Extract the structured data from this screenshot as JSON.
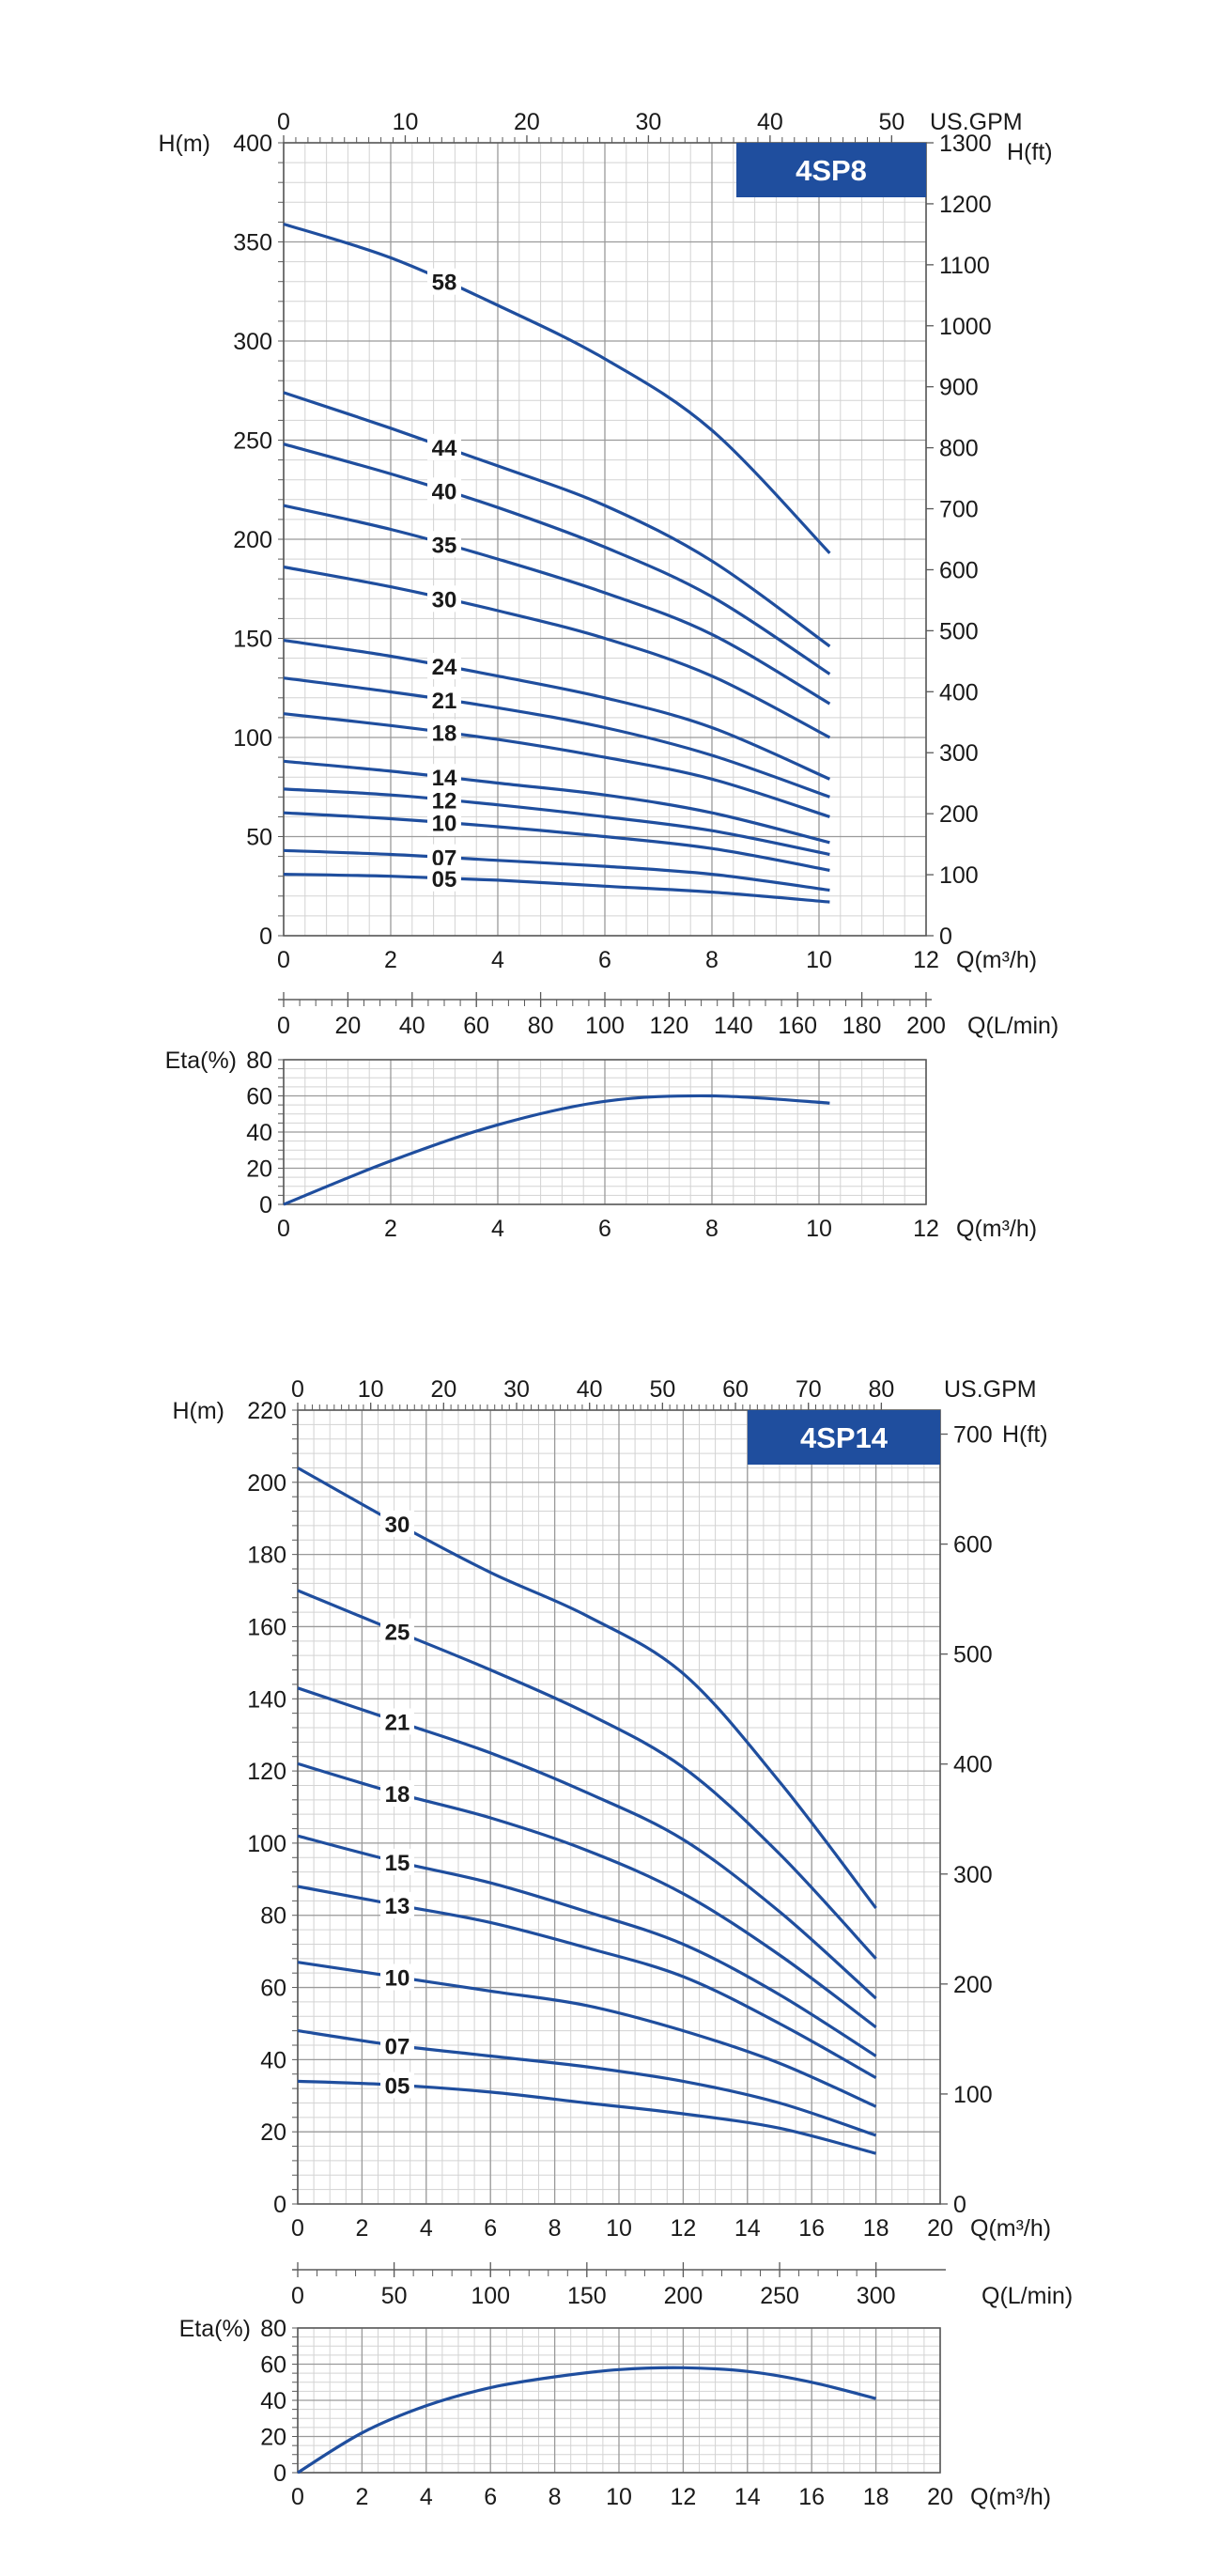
{
  "colors": {
    "curve": "#1f4e9e",
    "badge": "#1f4e9e",
    "grid_major": "#9a9a9a",
    "grid_minor": "#d3d3d3",
    "axis": "#5a5a5a",
    "text": "#1a1a1a"
  },
  "chart_data": [
    {
      "type": "line",
      "model": "4SP8",
      "x_unit": "Q(m³/h)",
      "y_unit": "H(m)",
      "top_unit": "US.GPM",
      "right_unit": "H(ft)",
      "xlim": [
        0,
        12
      ],
      "ylim": [
        0,
        400
      ],
      "x_ticks": [
        "0",
        "2",
        "4",
        "6",
        "8",
        "10",
        "12"
      ],
      "y_ticks": [
        "0",
        "50",
        "100",
        "150",
        "200",
        "250",
        "300",
        "350",
        "400"
      ],
      "top_ticks": [
        "0",
        "10",
        "20",
        "30",
        "40",
        "50"
      ],
      "right_ticks": [
        "0",
        "100",
        "200",
        "300",
        "400",
        "500",
        "600",
        "700",
        "800",
        "900",
        "1000",
        "1100",
        "1200",
        "1300"
      ],
      "grid": true,
      "series": [
        {
          "name": "58",
          "x": [
            0,
            2,
            4,
            6,
            8,
            10.2
          ],
          "y": [
            359,
            342,
            318,
            291,
            255,
            193
          ]
        },
        {
          "name": "44",
          "x": [
            0,
            2,
            4,
            6,
            8,
            10.2
          ],
          "y": [
            274,
            256,
            237,
            217,
            189,
            146
          ]
        },
        {
          "name": "40",
          "x": [
            0,
            2,
            4,
            6,
            8,
            10.2
          ],
          "y": [
            248,
            233,
            216,
            196,
            171,
            132
          ]
        },
        {
          "name": "35",
          "x": [
            0,
            2,
            4,
            6,
            8,
            10.2
          ],
          "y": [
            217,
            205,
            190,
            173,
            152,
            117
          ]
        },
        {
          "name": "30",
          "x": [
            0,
            2,
            4,
            6,
            8,
            10.2
          ],
          "y": [
            186,
            176,
            164,
            150,
            131,
            100
          ]
        },
        {
          "name": "24",
          "x": [
            0,
            2,
            4,
            6,
            8,
            10.2
          ],
          "y": [
            149,
            141,
            131,
            120,
            105,
            79
          ]
        },
        {
          "name": "21",
          "x": [
            0,
            2,
            4,
            6,
            8,
            10.2
          ],
          "y": [
            130,
            123,
            115,
            105,
            91,
            70
          ]
        },
        {
          "name": "18",
          "x": [
            0,
            2,
            4,
            6,
            8,
            10.2
          ],
          "y": [
            112,
            106,
            99,
            90,
            79,
            60
          ]
        },
        {
          "name": "14",
          "x": [
            0,
            2,
            4,
            6,
            8,
            10.2
          ],
          "y": [
            88,
            83,
            77,
            71,
            62,
            47
          ]
        },
        {
          "name": "12",
          "x": [
            0,
            2,
            4,
            6,
            8,
            10.2
          ],
          "y": [
            74,
            71,
            66,
            60,
            53,
            41
          ]
        },
        {
          "name": "10",
          "x": [
            0,
            2,
            4,
            6,
            8,
            10.2
          ],
          "y": [
            62,
            59,
            55,
            50,
            44,
            33
          ]
        },
        {
          "name": "07",
          "x": [
            0,
            2,
            4,
            6,
            8,
            10.2
          ],
          "y": [
            43,
            41,
            38,
            35,
            31,
            23
          ]
        },
        {
          "name": "05",
          "x": [
            0,
            2,
            4,
            6,
            8,
            10.2
          ],
          "y": [
            31,
            30,
            28,
            25,
            22,
            17
          ]
        }
      ],
      "lmin_axis": {
        "unit": "Q(L/min)",
        "ticks": [
          "0",
          "20",
          "40",
          "60",
          "80",
          "100",
          "120",
          "140",
          "160",
          "180",
          "200"
        ]
      },
      "efficiency": {
        "y_unit": "Eta(%)",
        "x_unit": "Q(m³/h)",
        "ylim": [
          0,
          80
        ],
        "y_ticks": [
          "0",
          "20",
          "40",
          "60",
          "80"
        ],
        "x_ticks": [
          "0",
          "2",
          "4",
          "6",
          "8",
          "10",
          "12"
        ],
        "x": [
          0,
          2,
          4,
          6,
          8,
          10.2
        ],
        "y": [
          0,
          24,
          44,
          57,
          60,
          56
        ]
      }
    },
    {
      "type": "line",
      "model": "4SP14",
      "x_unit": "Q(m³/h)",
      "y_unit": "H(m)",
      "top_unit": "US.GPM",
      "right_unit": "H(ft)",
      "xlim": [
        0,
        20
      ],
      "ylim": [
        0,
        220
      ],
      "x_ticks": [
        "0",
        "2",
        "4",
        "6",
        "8",
        "10",
        "12",
        "14",
        "16",
        "18",
        "20"
      ],
      "y_ticks": [
        "0",
        "20",
        "40",
        "60",
        "80",
        "100",
        "120",
        "140",
        "160",
        "180",
        "200",
        "220"
      ],
      "top_ticks": [
        "0",
        "10",
        "20",
        "30",
        "40",
        "50",
        "60",
        "70",
        "80"
      ],
      "right_ticks": [
        "0",
        "100",
        "200",
        "300",
        "400",
        "500",
        "600",
        "700"
      ],
      "grid": true,
      "series": [
        {
          "name": "30",
          "x": [
            0,
            3,
            6,
            9,
            12,
            15,
            18
          ],
          "y": [
            204,
            189,
            175,
            163,
            147,
            117,
            82
          ]
        },
        {
          "name": "25",
          "x": [
            0,
            3,
            6,
            9,
            12,
            15,
            18
          ],
          "y": [
            170,
            159,
            148,
            136,
            121,
            97,
            68
          ]
        },
        {
          "name": "21",
          "x": [
            0,
            3,
            6,
            9,
            12,
            15,
            18
          ],
          "y": [
            143,
            134,
            125,
            114,
            101,
            81,
            57
          ]
        },
        {
          "name": "18",
          "x": [
            0,
            3,
            6,
            9,
            12,
            15,
            18
          ],
          "y": [
            122,
            114,
            107,
            98,
            86,
            69,
            49
          ]
        },
        {
          "name": "15",
          "x": [
            0,
            3,
            6,
            9,
            12,
            15,
            18
          ],
          "y": [
            102,
            95,
            89,
            81,
            72,
            58,
            41
          ]
        },
        {
          "name": "13",
          "x": [
            0,
            3,
            6,
            9,
            12,
            15,
            18
          ],
          "y": [
            88,
            83,
            78,
            71,
            63,
            50,
            35
          ]
        },
        {
          "name": "10",
          "x": [
            0,
            3,
            6,
            9,
            12,
            15,
            18
          ],
          "y": [
            67,
            63,
            59,
            55,
            48,
            39,
            27
          ]
        },
        {
          "name": "07",
          "x": [
            0,
            3,
            6,
            9,
            12,
            15,
            18
          ],
          "y": [
            48,
            44,
            41,
            38,
            34,
            28,
            19
          ]
        },
        {
          "name": "05",
          "x": [
            0,
            3,
            6,
            9,
            12,
            15,
            18
          ],
          "y": [
            34,
            33,
            31,
            28,
            25,
            21,
            14
          ]
        }
      ],
      "lmin_axis": {
        "unit": "Q(L/min)",
        "ticks": [
          "0",
          "50",
          "100",
          "150",
          "200",
          "250",
          "300"
        ]
      },
      "efficiency": {
        "y_unit": "Eta(%)",
        "x_unit": "Q(m³/h)",
        "ylim": [
          0,
          80
        ],
        "y_ticks": [
          "0",
          "20",
          "40",
          "60",
          "80"
        ],
        "x_ticks": [
          "0",
          "2",
          "4",
          "6",
          "8",
          "10",
          "12",
          "14",
          "16",
          "18",
          "20"
        ],
        "x": [
          0,
          2,
          4,
          6,
          8,
          10,
          12,
          14,
          16,
          18
        ],
        "y": [
          0,
          22,
          37,
          47,
          53,
          57,
          58,
          56,
          50,
          41
        ]
      }
    }
  ]
}
